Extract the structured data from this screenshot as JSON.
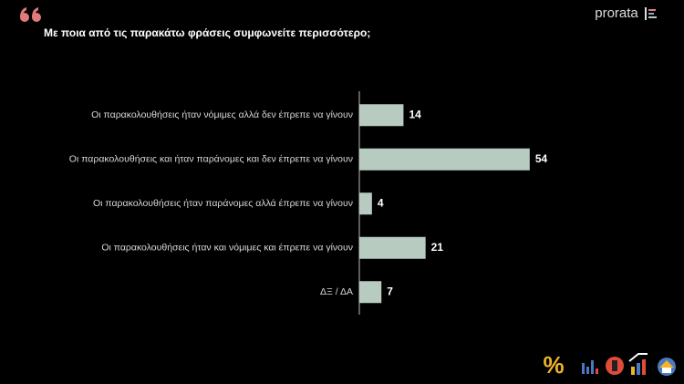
{
  "chart_data": {
    "type": "bar",
    "orientation": "horizontal",
    "title": "Με ποια από τις παρακάτω φράσεις συμφωνείτε περισσότερο;",
    "categories": [
      "Οι παρακολουθήσεις ήταν νόμιμες αλλά δεν έπρεπε να γίνουν",
      "Οι παρακολουθήσεις και ήταν παράνομες και δεν έπρεπε να γίνουν",
      "Οι παρακολουθήσεις ήταν παράνομες αλλά έπρεπε να γίνουν",
      "Οι παρακολουθήσεις ήταν και νόμιμες και έπρεπε να γίνουν",
      "ΔΞ / ΔΑ"
    ],
    "values": [
      14,
      54,
      4,
      21,
      7
    ],
    "color": "#b7cbc0"
  },
  "logo": "prorata"
}
